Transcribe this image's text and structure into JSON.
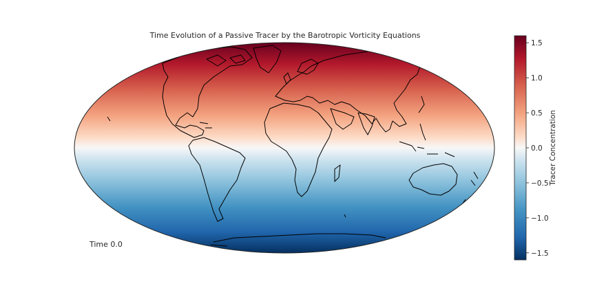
{
  "chart_data": {
    "type": "heatmap",
    "projection": "Mollweide",
    "title": "Time Evolution of a Passive Tracer by the Barotropic Vorticity Equations",
    "annotation": "Time 0.0",
    "field": {
      "description": "Tracer concentration varies with latitude (sin of latitude), uniform in longitude",
      "min": -1.6,
      "max": 1.6
    },
    "colorbar": {
      "label": "Tracer Concentration",
      "colormap": "RdBu_r",
      "vmin": -1.6,
      "vmax": 1.6,
      "ticks": [
        -1.5,
        -1.0,
        -0.5,
        0.0,
        0.5,
        1.0,
        1.5
      ],
      "tick_labels": [
        "−1.5",
        "−1.0",
        "−0.5",
        "0.0",
        "0.5",
        "1.0",
        "1.5"
      ]
    },
    "coastlines": true,
    "grid": false
  },
  "colors": {
    "high": "#67001f",
    "mid": "#f7f7f7",
    "low": "#053061",
    "coastline": "#000000"
  }
}
